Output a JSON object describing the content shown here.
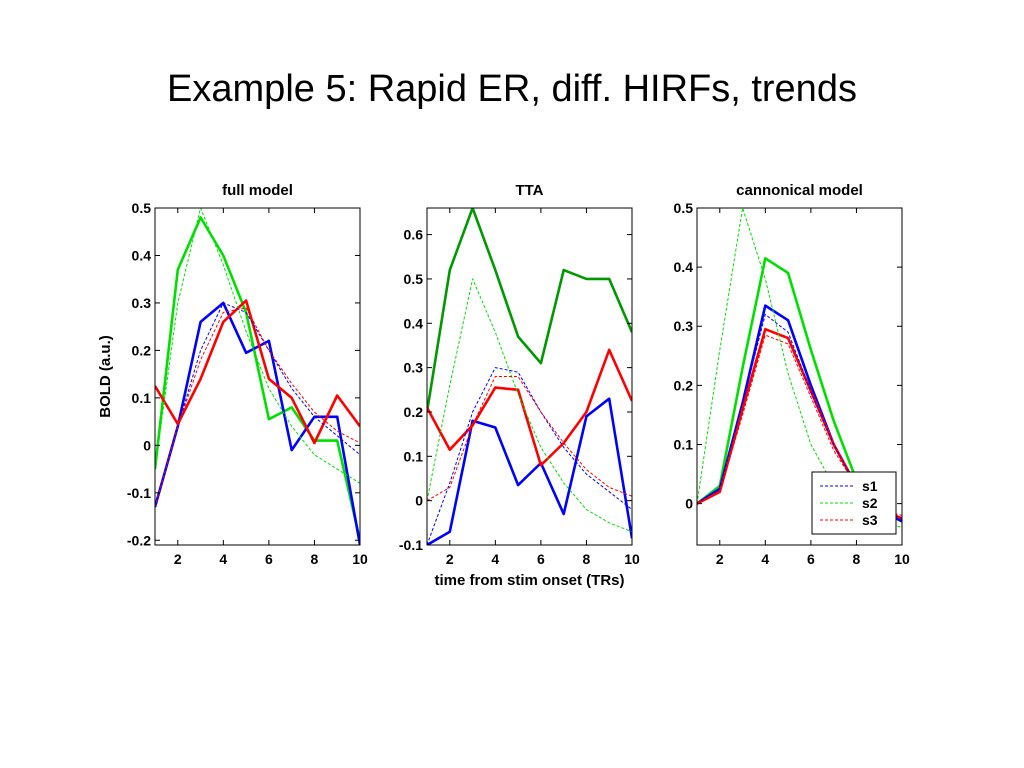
{
  "slide": {
    "title": "Example 5:  Rapid ER, diff. HIRFs, trends"
  },
  "colors": {
    "s1": "#0000ff",
    "s2": "#00e000",
    "s2_dark": "#009900",
    "s3": "#ff0000",
    "axis": "#000000"
  },
  "chart_data": [
    {
      "type": "line",
      "title": "full model",
      "xlabel": "",
      "ylabel": "BOLD (a.u.)",
      "xlim": [
        1,
        10
      ],
      "ylim": [
        -0.21,
        0.5
      ],
      "xticks": [
        2,
        4,
        6,
        8,
        10
      ],
      "yticks": [
        -0.2,
        -0.1,
        0,
        0.1,
        0.2,
        0.3,
        0.4,
        0.5
      ],
      "ytick_labels": [
        "-0.2",
        "-0.1",
        "0",
        "0.1",
        "0.2",
        "0.3",
        "0.4",
        "0.5"
      ],
      "grid": false,
      "x": [
        1,
        2,
        3,
        4,
        5,
        6,
        7,
        8,
        9,
        10
      ],
      "series": [
        {
          "key": "s2",
          "style": "solid",
          "values": [
            -0.05,
            0.37,
            0.48,
            0.4,
            0.28,
            0.055,
            0.08,
            0.01,
            0.01,
            -0.2
          ]
        },
        {
          "key": "s1",
          "style": "solid",
          "values": [
            -0.13,
            0.04,
            0.26,
            0.3,
            0.195,
            0.22,
            -0.01,
            0.06,
            0.06,
            -0.21
          ]
        },
        {
          "key": "s3",
          "style": "solid",
          "values": [
            0.125,
            0.045,
            0.14,
            0.26,
            0.305,
            0.14,
            0.1,
            0.005,
            0.105,
            0.04
          ]
        },
        {
          "key": "s2",
          "style": "dashed",
          "values": [
            -0.05,
            0.3,
            0.5,
            0.38,
            0.24,
            0.12,
            0.04,
            -0.02,
            -0.05,
            -0.08
          ]
        },
        {
          "key": "s1",
          "style": "dashed",
          "values": [
            -0.13,
            0.04,
            0.2,
            0.3,
            0.28,
            0.2,
            0.12,
            0.06,
            0.02,
            -0.02
          ]
        },
        {
          "key": "s3",
          "style": "dashed",
          "values": [
            -0.13,
            0.04,
            0.18,
            0.28,
            0.29,
            0.2,
            0.13,
            0.07,
            0.03,
            0.005
          ]
        }
      ]
    },
    {
      "type": "line",
      "title": "TTA",
      "xlabel": "time from stim onset (TRs)",
      "ylabel": "",
      "xlim": [
        1,
        10
      ],
      "ylim": [
        -0.1,
        0.66
      ],
      "xticks": [
        2,
        4,
        6,
        8,
        10
      ],
      "yticks": [
        -0.1,
        0,
        0.1,
        0.2,
        0.3,
        0.4,
        0.5,
        0.6
      ],
      "ytick_labels": [
        "-0.1",
        "0",
        "0.1",
        "0.2",
        "0.3",
        "0.4",
        "0.5",
        "0.6"
      ],
      "grid": false,
      "x": [
        1,
        2,
        3,
        4,
        5,
        6,
        7,
        8,
        9,
        10
      ],
      "series": [
        {
          "key": "s2_dark",
          "style": "solid",
          "values": [
            0.2,
            0.52,
            0.66,
            0.52,
            0.37,
            0.31,
            0.52,
            0.5,
            0.5,
            0.38
          ]
        },
        {
          "key": "s1",
          "style": "solid",
          "values": [
            -0.1,
            -0.07,
            0.18,
            0.165,
            0.035,
            0.085,
            -0.03,
            0.19,
            0.23,
            -0.085
          ]
        },
        {
          "key": "s3",
          "style": "solid",
          "values": [
            0.21,
            0.115,
            0.17,
            0.255,
            0.25,
            0.08,
            0.13,
            0.2,
            0.34,
            0.225
          ]
        },
        {
          "key": "s2",
          "style": "dashed",
          "values": [
            0.0,
            0.26,
            0.5,
            0.38,
            0.24,
            0.12,
            0.04,
            -0.02,
            -0.05,
            -0.07
          ]
        },
        {
          "key": "s1",
          "style": "dashed",
          "values": [
            -0.1,
            0.04,
            0.2,
            0.3,
            0.29,
            0.2,
            0.12,
            0.06,
            0.02,
            -0.02
          ]
        },
        {
          "key": "s3",
          "style": "dashed",
          "values": [
            0.0,
            0.03,
            0.17,
            0.28,
            0.28,
            0.2,
            0.13,
            0.07,
            0.03,
            0.01
          ]
        }
      ]
    },
    {
      "type": "line",
      "title": "cannonical model",
      "xlabel": "",
      "ylabel": "",
      "xlim": [
        1,
        10
      ],
      "ylim": [
        -0.07,
        0.5
      ],
      "xticks": [
        2,
        4,
        6,
        8,
        10
      ],
      "yticks": [
        0,
        0.1,
        0.2,
        0.3,
        0.4,
        0.5
      ],
      "ytick_labels": [
        "0",
        "0.1",
        "0.2",
        "0.3",
        "0.4",
        "0.5"
      ],
      "grid": false,
      "legend": {
        "position": "bottom-right",
        "entries": [
          "s1",
          "s2",
          "s3"
        ]
      },
      "x": [
        1,
        2,
        3,
        4,
        5,
        6,
        7,
        8,
        9,
        10
      ],
      "series": [
        {
          "key": "s2",
          "style": "solid",
          "values": [
            0.0,
            0.03,
            0.23,
            0.415,
            0.39,
            0.26,
            0.14,
            0.04,
            -0.01,
            -0.03
          ]
        },
        {
          "key": "s1",
          "style": "solid",
          "values": [
            0.0,
            0.025,
            0.17,
            0.335,
            0.31,
            0.2,
            0.1,
            0.03,
            -0.01,
            -0.03
          ]
        },
        {
          "key": "s3",
          "style": "solid",
          "values": [
            0.0,
            0.02,
            0.16,
            0.295,
            0.28,
            0.19,
            0.1,
            0.03,
            -0.01,
            -0.025
          ]
        },
        {
          "key": "s2",
          "style": "dashed",
          "values": [
            0.0,
            0.26,
            0.5,
            0.38,
            0.22,
            0.1,
            0.03,
            -0.01,
            -0.03,
            -0.04
          ]
        },
        {
          "key": "s1",
          "style": "dashed",
          "values": [
            0.0,
            0.025,
            0.17,
            0.32,
            0.29,
            0.19,
            0.1,
            0.03,
            -0.01,
            -0.025
          ]
        },
        {
          "key": "s3",
          "style": "dashed",
          "values": [
            0.0,
            0.02,
            0.15,
            0.285,
            0.27,
            0.18,
            0.09,
            0.03,
            -0.01,
            -0.02
          ]
        }
      ]
    }
  ]
}
